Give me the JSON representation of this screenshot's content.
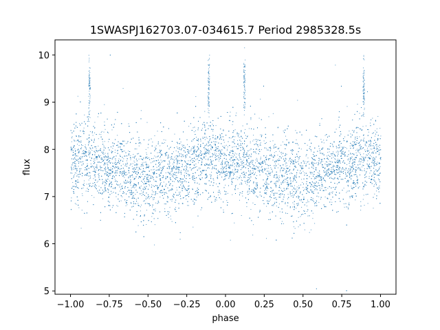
{
  "chart_data": {
    "type": "scatter",
    "title": "1SWASPJ162703.07-034615.7 Period 2985328.5s",
    "xlabel": "phase",
    "ylabel": "flux",
    "xlim": [
      -1.1,
      1.1
    ],
    "ylim": [
      4.93,
      10.32
    ],
    "xticks": [
      -1.0,
      -0.75,
      -0.5,
      -0.25,
      0.0,
      0.25,
      0.5,
      0.75,
      1.0
    ],
    "xtick_labels": [
      "−1.00",
      "−0.75",
      "−0.50",
      "−0.25",
      "0.00",
      "0.25",
      "0.50",
      "0.75",
      "1.00"
    ],
    "yticks": [
      5,
      6,
      7,
      8,
      9,
      10
    ],
    "ytick_labels": [
      "5",
      "6",
      "7",
      "8",
      "9",
      "10"
    ],
    "grid": false,
    "legend": "none",
    "marker_color": "#1f77b4",
    "series": [
      {
        "phase": [
          -0.9,
          -0.8,
          -0.7,
          -0.6,
          -0.5,
          -0.4,
          -0.3,
          -0.2,
          -0.1,
          0.0,
          0.1,
          0.2,
          0.3,
          0.4,
          0.5,
          0.6,
          0.7,
          0.8,
          0.9,
          1.0
        ],
        "flux_center": [
          7.75,
          7.7,
          7.6,
          7.5,
          7.35,
          7.45,
          7.55,
          7.7,
          7.8,
          7.75,
          7.7,
          7.6,
          7.5,
          7.4,
          7.35,
          7.5,
          7.6,
          7.7,
          7.75,
          7.75
        ],
        "flux_band_low": [
          6.9,
          6.85,
          6.8,
          6.7,
          6.5,
          6.7,
          6.85,
          6.9,
          7.0,
          6.9,
          6.85,
          6.8,
          6.7,
          6.6,
          6.5,
          6.75,
          6.85,
          6.95,
          6.9,
          6.9
        ],
        "flux_band_high": [
          8.6,
          8.55,
          8.5,
          8.4,
          8.3,
          8.35,
          8.4,
          8.6,
          8.7,
          8.6,
          8.55,
          8.5,
          8.4,
          8.3,
          8.3,
          8.4,
          8.5,
          8.6,
          8.7,
          8.6
        ]
      }
    ],
    "outlier_spikes": [
      {
        "phase": -0.88,
        "flux_max": 10.05,
        "flux_cluster": 9.4
      },
      {
        "phase": -0.11,
        "flux_max": 10.05,
        "flux_cluster": 9.3
      },
      {
        "phase": 0.12,
        "flux_max": 10.05,
        "flux_cluster": 9.4
      },
      {
        "phase": 0.89,
        "flux_max": 10.05,
        "flux_cluster": 9.3
      }
    ]
  }
}
